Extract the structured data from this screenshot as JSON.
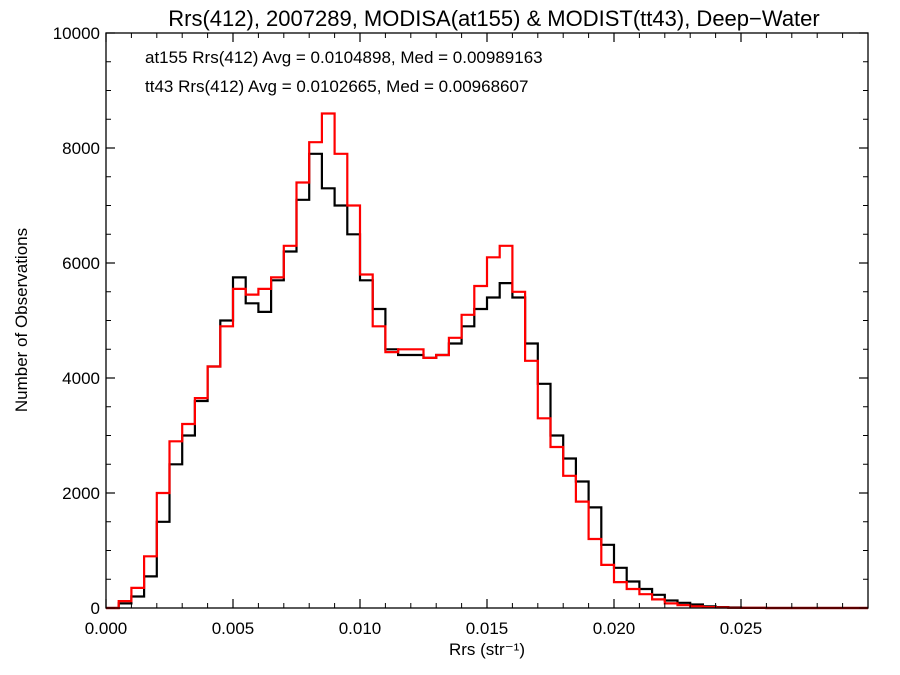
{
  "chart_data": {
    "type": "line",
    "title": "Rrs(412), 2007289, MODISA(at155) & MODIST(tt43), Deep−Water",
    "xlabel": "Rrs (str⁻¹)",
    "ylabel": "Number of Observations",
    "xlim": [
      0.0,
      0.03
    ],
    "ylim": [
      0,
      10000
    ],
    "x_ticks": [
      0.0,
      0.005,
      0.01,
      0.015,
      0.02,
      0.025
    ],
    "x_tick_labels": [
      "0.000",
      "0.005",
      "0.010",
      "0.015",
      "0.020",
      "0.025"
    ],
    "y_ticks": [
      0,
      2000,
      4000,
      6000,
      8000,
      10000
    ],
    "y_tick_labels": [
      "0",
      "2000",
      "4000",
      "6000",
      "8000",
      "10000"
    ],
    "grid": false,
    "series": [
      {
        "color": "#000000",
        "x": [
          0.0,
          0.0005,
          0.001,
          0.0015,
          0.002,
          0.0025,
          0.003,
          0.0035,
          0.004,
          0.0045,
          0.005,
          0.0055,
          0.006,
          0.0065,
          0.007,
          0.0075,
          0.008,
          0.0085,
          0.009,
          0.0095,
          0.01,
          0.0105,
          0.011,
          0.0115,
          0.012,
          0.0125,
          0.013,
          0.0135,
          0.014,
          0.0145,
          0.015,
          0.0155,
          0.016,
          0.0165,
          0.017,
          0.0175,
          0.018,
          0.0185,
          0.019,
          0.0195,
          0.02,
          0.0205,
          0.021,
          0.0215,
          0.022,
          0.0225,
          0.023,
          0.0235,
          0.024,
          0.0245,
          0.025,
          0.026,
          0.027,
          0.028,
          0.029,
          0.03
        ],
        "y": [
          0,
          80,
          200,
          550,
          1500,
          2500,
          3000,
          3600,
          4200,
          5000,
          5750,
          5300,
          5150,
          5700,
          6200,
          7100,
          7900,
          7300,
          7000,
          6500,
          5700,
          5200,
          4500,
          4400,
          4400,
          4350,
          4400,
          4600,
          4900,
          5200,
          5400,
          5650,
          5400,
          4600,
          3900,
          3000,
          2600,
          2200,
          1750,
          1100,
          700,
          460,
          330,
          230,
          130,
          90,
          60,
          30,
          15,
          8,
          4,
          0,
          0,
          0,
          0,
          0
        ]
      },
      {
        "color": "#ff0000",
        "x": [
          0.0,
          0.0005,
          0.001,
          0.0015,
          0.002,
          0.0025,
          0.003,
          0.0035,
          0.004,
          0.0045,
          0.005,
          0.0055,
          0.006,
          0.0065,
          0.007,
          0.0075,
          0.008,
          0.0085,
          0.009,
          0.0095,
          0.01,
          0.0105,
          0.011,
          0.0115,
          0.012,
          0.0125,
          0.013,
          0.0135,
          0.014,
          0.0145,
          0.015,
          0.0155,
          0.016,
          0.0165,
          0.017,
          0.0175,
          0.018,
          0.0185,
          0.019,
          0.0195,
          0.02,
          0.0205,
          0.021,
          0.0215,
          0.022,
          0.0225,
          0.023,
          0.0235,
          0.024,
          0.0245,
          0.025,
          0.026,
          0.027,
          0.028,
          0.029,
          0.03
        ],
        "y": [
          0,
          120,
          350,
          900,
          2000,
          2900,
          3200,
          3650,
          4200,
          4900,
          5550,
          5450,
          5550,
          5750,
          6300,
          7400,
          8100,
          8600,
          7900,
          7000,
          5800,
          4900,
          4450,
          4500,
          4500,
          4350,
          4400,
          4700,
          5100,
          5600,
          6100,
          6300,
          5500,
          4300,
          3300,
          2800,
          2300,
          1850,
          1200,
          750,
          450,
          330,
          240,
          150,
          80,
          50,
          30,
          15,
          8,
          4,
          2,
          0,
          0,
          0,
          0,
          0
        ]
      }
    ],
    "annotations": [
      {
        "text": "at155 Rrs(412) Avg = 0.0104898, Med = 0.00989163",
        "color": "#000000"
      },
      {
        "text": "tt43 Rrs(412) Avg = 0.0102665, Med = 0.00968607",
        "color": "#ff0000"
      }
    ]
  }
}
